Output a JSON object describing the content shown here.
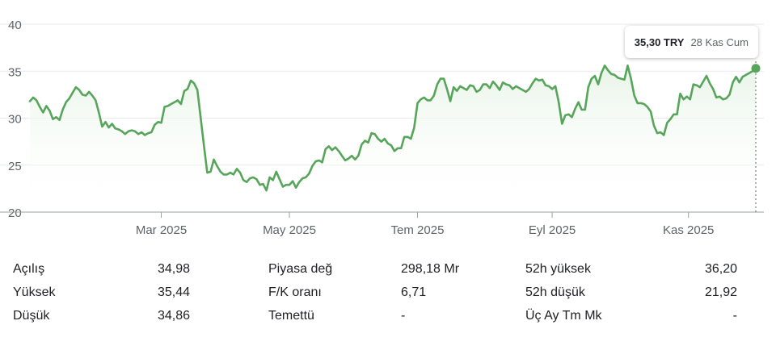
{
  "chart_data": {
    "type": "line",
    "series": [
      {
        "values": [
          [
            0,
            31.8
          ],
          [
            2,
            32.2
          ],
          [
            4,
            31.9
          ],
          [
            6,
            31.2
          ],
          [
            8,
            30.6
          ],
          [
            10,
            31.3
          ],
          [
            12,
            30.8
          ],
          [
            14,
            29.9
          ],
          [
            16,
            30.1
          ],
          [
            18,
            29.8
          ],
          [
            20,
            30.9
          ],
          [
            22,
            31.7
          ],
          [
            24,
            32.1
          ],
          [
            26,
            32.7
          ],
          [
            28,
            33.3
          ],
          [
            30,
            33.0
          ],
          [
            32,
            32.5
          ],
          [
            34,
            32.4
          ],
          [
            36,
            32.8
          ],
          [
            38,
            32.4
          ],
          [
            40,
            31.9
          ],
          [
            42,
            30.6
          ],
          [
            44,
            29.1
          ],
          [
            46,
            29.6
          ],
          [
            48,
            29.0
          ],
          [
            50,
            29.4
          ],
          [
            52,
            28.9
          ],
          [
            54,
            28.8
          ],
          [
            56,
            28.6
          ],
          [
            58,
            28.3
          ],
          [
            60,
            28.6
          ],
          [
            62,
            28.7
          ],
          [
            64,
            28.6
          ],
          [
            66,
            28.3
          ],
          [
            68,
            28.5
          ],
          [
            70,
            28.2
          ],
          [
            72,
            28.4
          ],
          [
            74,
            28.5
          ],
          [
            76,
            29.3
          ],
          [
            78,
            29.6
          ],
          [
            80,
            29.5
          ],
          [
            82,
            31.2
          ],
          [
            84,
            31.3
          ],
          [
            86,
            31.5
          ],
          [
            88,
            31.7
          ],
          [
            90,
            31.9
          ],
          [
            92,
            31.5
          ],
          [
            94,
            32.9
          ],
          [
            96,
            33.1
          ],
          [
            98,
            34.0
          ],
          [
            100,
            33.7
          ],
          [
            102,
            33.0
          ],
          [
            104,
            30.0
          ],
          [
            106,
            27.0
          ],
          [
            108,
            24.2
          ],
          [
            110,
            24.3
          ],
          [
            112,
            25.6
          ],
          [
            114,
            24.9
          ],
          [
            116,
            24.3
          ],
          [
            118,
            24.0
          ],
          [
            120,
            24.0
          ],
          [
            122,
            24.2
          ],
          [
            124,
            24.0
          ],
          [
            126,
            24.6
          ],
          [
            128,
            24.2
          ],
          [
            130,
            23.4
          ],
          [
            132,
            23.2
          ],
          [
            134,
            23.6
          ],
          [
            136,
            23.7
          ],
          [
            138,
            23.5
          ],
          [
            140,
            22.9
          ],
          [
            142,
            23.0
          ],
          [
            144,
            22.3
          ],
          [
            146,
            23.7
          ],
          [
            148,
            23.4
          ],
          [
            150,
            24.3
          ],
          [
            152,
            23.5
          ],
          [
            154,
            22.7
          ],
          [
            156,
            22.9
          ],
          [
            158,
            22.9
          ],
          [
            160,
            23.3
          ],
          [
            162,
            22.6
          ],
          [
            164,
            23.2
          ],
          [
            166,
            23.6
          ],
          [
            168,
            23.7
          ],
          [
            170,
            24.1
          ],
          [
            172,
            24.9
          ],
          [
            174,
            25.4
          ],
          [
            176,
            25.5
          ],
          [
            178,
            25.3
          ],
          [
            180,
            26.7
          ],
          [
            182,
            27.0
          ],
          [
            184,
            26.6
          ],
          [
            186,
            26.9
          ],
          [
            188,
            26.5
          ],
          [
            190,
            26.0
          ],
          [
            192,
            25.5
          ],
          [
            194,
            25.7
          ],
          [
            196,
            26.0
          ],
          [
            198,
            25.6
          ],
          [
            200,
            26.0
          ],
          [
            202,
            27.2
          ],
          [
            204,
            27.6
          ],
          [
            206,
            27.4
          ],
          [
            208,
            28.4
          ],
          [
            210,
            28.3
          ],
          [
            212,
            27.8
          ],
          [
            214,
            27.5
          ],
          [
            216,
            27.8
          ],
          [
            218,
            27.3
          ],
          [
            220,
            27.1
          ],
          [
            222,
            26.5
          ],
          [
            224,
            26.8
          ],
          [
            226,
            26.8
          ],
          [
            228,
            28.0
          ],
          [
            230,
            28.0
          ],
          [
            232,
            27.8
          ],
          [
            234,
            29.0
          ],
          [
            236,
            31.6
          ],
          [
            238,
            32.0
          ],
          [
            240,
            32.2
          ],
          [
            242,
            31.9
          ],
          [
            244,
            31.9
          ],
          [
            246,
            32.4
          ],
          [
            248,
            33.6
          ],
          [
            250,
            34.2
          ],
          [
            252,
            34.2
          ],
          [
            254,
            33.1
          ],
          [
            256,
            31.8
          ],
          [
            258,
            33.3
          ],
          [
            260,
            32.9
          ],
          [
            262,
            33.4
          ],
          [
            264,
            33.2
          ],
          [
            266,
            33.0
          ],
          [
            268,
            33.5
          ],
          [
            270,
            33.4
          ],
          [
            272,
            32.8
          ],
          [
            274,
            33.0
          ],
          [
            276,
            33.6
          ],
          [
            278,
            33.6
          ],
          [
            280,
            33.2
          ],
          [
            282,
            33.9
          ],
          [
            284,
            33.5
          ],
          [
            286,
            33.0
          ],
          [
            288,
            33.8
          ],
          [
            290,
            33.6
          ],
          [
            292,
            33.5
          ],
          [
            294,
            33.1
          ],
          [
            296,
            33.4
          ],
          [
            298,
            33.2
          ],
          [
            300,
            33.0
          ],
          [
            302,
            32.8
          ],
          [
            304,
            33.1
          ],
          [
            306,
            33.7
          ],
          [
            308,
            34.2
          ],
          [
            310,
            34.0
          ],
          [
            312,
            34.1
          ],
          [
            314,
            33.5
          ],
          [
            316,
            33.4
          ],
          [
            318,
            33.1
          ],
          [
            320,
            33.4
          ],
          [
            322,
            31.7
          ],
          [
            324,
            29.4
          ],
          [
            326,
            30.3
          ],
          [
            328,
            30.4
          ],
          [
            330,
            30.1
          ],
          [
            332,
            31.0
          ],
          [
            334,
            31.7
          ],
          [
            336,
            30.9
          ],
          [
            338,
            30.9
          ],
          [
            340,
            33.3
          ],
          [
            342,
            34.2
          ],
          [
            344,
            34.5
          ],
          [
            346,
            33.6
          ],
          [
            348,
            34.8
          ],
          [
            350,
            35.6
          ],
          [
            352,
            35.1
          ],
          [
            354,
            34.7
          ],
          [
            356,
            34.6
          ],
          [
            358,
            34.3
          ],
          [
            360,
            34.2
          ],
          [
            362,
            34.1
          ],
          [
            364,
            35.6
          ],
          [
            366,
            34.2
          ],
          [
            368,
            32.4
          ],
          [
            370,
            31.6
          ],
          [
            372,
            31.6
          ],
          [
            374,
            31.5
          ],
          [
            376,
            31.2
          ],
          [
            378,
            30.7
          ],
          [
            380,
            29.2
          ],
          [
            382,
            28.4
          ],
          [
            384,
            28.5
          ],
          [
            386,
            28.2
          ],
          [
            388,
            29.5
          ],
          [
            390,
            29.9
          ],
          [
            392,
            30.4
          ],
          [
            394,
            30.4
          ],
          [
            396,
            32.6
          ],
          [
            398,
            32.0
          ],
          [
            400,
            32.3
          ],
          [
            402,
            32.0
          ],
          [
            404,
            33.6
          ],
          [
            406,
            33.5
          ],
          [
            408,
            33.3
          ],
          [
            410,
            33.9
          ],
          [
            412,
            34.5
          ],
          [
            414,
            33.7
          ],
          [
            416,
            33.1
          ],
          [
            418,
            32.2
          ],
          [
            420,
            32.3
          ],
          [
            422,
            32.0
          ],
          [
            424,
            32.1
          ],
          [
            426,
            32.5
          ],
          [
            428,
            33.8
          ],
          [
            430,
            34.4
          ],
          [
            432,
            33.8
          ],
          [
            434,
            34.4
          ],
          [
            436,
            34.6
          ],
          [
            438,
            34.8
          ],
          [
            440,
            35.0
          ],
          [
            442,
            35.3
          ]
        ]
      }
    ],
    "x_ticks": [
      {
        "label": "Mar 2025",
        "x": 80
      },
      {
        "label": "May 2025",
        "x": 158
      },
      {
        "label": "Tem 2025",
        "x": 236
      },
      {
        "label": "Eyl 2025",
        "x": 318
      },
      {
        "label": "Kas 2025",
        "x": 401
      }
    ],
    "xlim": [
      0,
      442
    ],
    "y_ticks": [
      20,
      25,
      30,
      35,
      40
    ],
    "ylim": [
      20,
      40
    ],
    "grid": true,
    "line_color": "#57a55a",
    "fill_color": "#e8f4e8"
  },
  "tooltip": {
    "price": "35,30 TRY",
    "date": "28 Kas Cum"
  },
  "stats": [
    [
      {
        "label": "Açılış",
        "value": "34,98"
      },
      {
        "label": "Piyasa değ",
        "value": "298,18 Mr"
      },
      {
        "label": "52h yüksek",
        "value": "36,20"
      }
    ],
    [
      {
        "label": "Yüksek",
        "value": "35,44"
      },
      {
        "label": "F/K oranı",
        "value": "6,71"
      },
      {
        "label": "52h düşük",
        "value": "21,92"
      }
    ],
    [
      {
        "label": "Düşük",
        "value": "34,86"
      },
      {
        "label": "Temettü",
        "value": "-"
      },
      {
        "label": "Üç Ay Tm Mk",
        "value": "-"
      }
    ]
  ]
}
